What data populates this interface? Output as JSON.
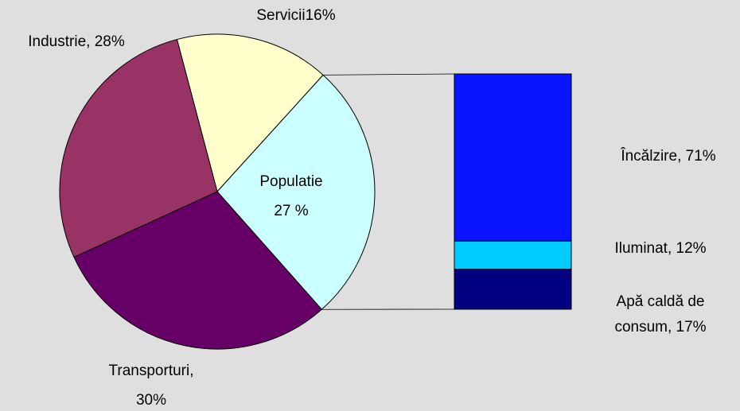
{
  "chart_data": [
    {
      "type": "pie",
      "values": [
        16,
        27,
        30,
        28
      ],
      "value_labels": [
        [
          "Servicii16%"
        ],
        [
          "Populatie",
          "27 %"
        ],
        [
          "Transporturi,",
          "30%"
        ],
        [
          "Industrie, 28%"
        ]
      ],
      "colors": [
        "#ffffcc",
        "#ccffff",
        "#660066",
        "#993366"
      ]
    },
    {
      "type": "stacked-bar",
      "values": [
        17,
        12,
        71
      ],
      "value_labels": [
        [
          "Apă caldă de",
          "consum, 17%"
        ],
        [
          "Iluminat, 12%"
        ],
        [
          "Încălzire, 71%"
        ]
      ],
      "colors": [
        "#000080",
        "#00ccff",
        "#0a14ff"
      ]
    }
  ]
}
